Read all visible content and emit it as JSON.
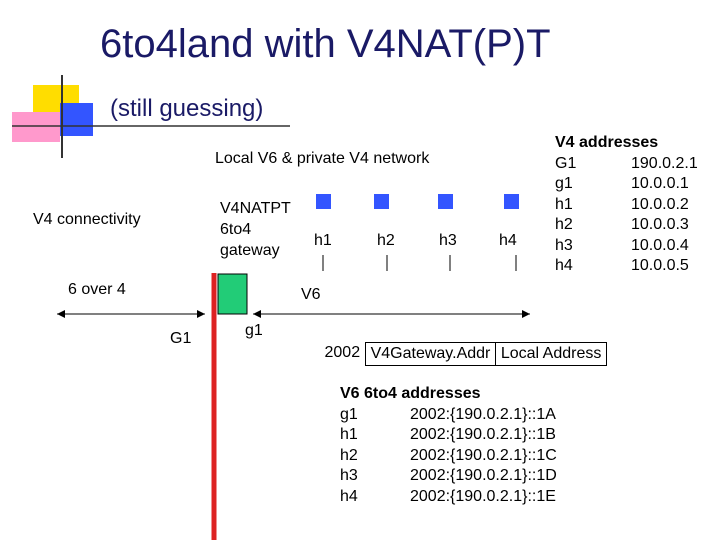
{
  "title": "6to4land with V4NAT(P)T",
  "subtitle": "(still guessing)",
  "diagram": {
    "network_label": "Local V6 & private V4 network",
    "v4_connectivity": "V4 connectivity",
    "six_over_four": "6 over 4",
    "v6_label": "V6",
    "G1_label": "G1",
    "g1_label": "g1",
    "gateway": {
      "line1": "V4NATPT",
      "line2": "6to4",
      "line3": "gateway"
    },
    "hosts": [
      "h1",
      "h2",
      "h3",
      "h4"
    ],
    "colors": {
      "gateway_box": "#22cc77",
      "wire": "#dd2222",
      "accent_blue": "#3355ff",
      "accent_yellow": "#ffdd00",
      "accent_pink": "#ff99cc"
    }
  },
  "v4_addresses": {
    "heading": "V4 addresses",
    "rows": [
      {
        "name": "G1",
        "addr": "190.0.2.1"
      },
      {
        "name": "g1",
        "addr": "10.0.0.1"
      },
      {
        "name": "h1",
        "addr": "10.0.0.2"
      },
      {
        "name": "h2",
        "addr": "10.0.0.3"
      },
      {
        "name": "h3",
        "addr": "10.0.0.4"
      },
      {
        "name": "h4",
        "addr": "10.0.0.5"
      }
    ]
  },
  "format_boxes": [
    "2002",
    "V4Gateway.Addr",
    "Local Address"
  ],
  "v6_addresses": {
    "heading": "V6 6to4 addresses",
    "rows": [
      {
        "name": "g1",
        "addr": "2002:{190.0.2.1}::1A"
      },
      {
        "name": "h1",
        "addr": "2002:{190.0.2.1}::1B"
      },
      {
        "name": "h2",
        "addr": "2002:{190.0.2.1}::1C"
      },
      {
        "name": "h3",
        "addr": "2002:{190.0.2.1}::1D"
      },
      {
        "name": "h4",
        "addr": "2002:{190.0.2.1}::1E"
      }
    ]
  }
}
